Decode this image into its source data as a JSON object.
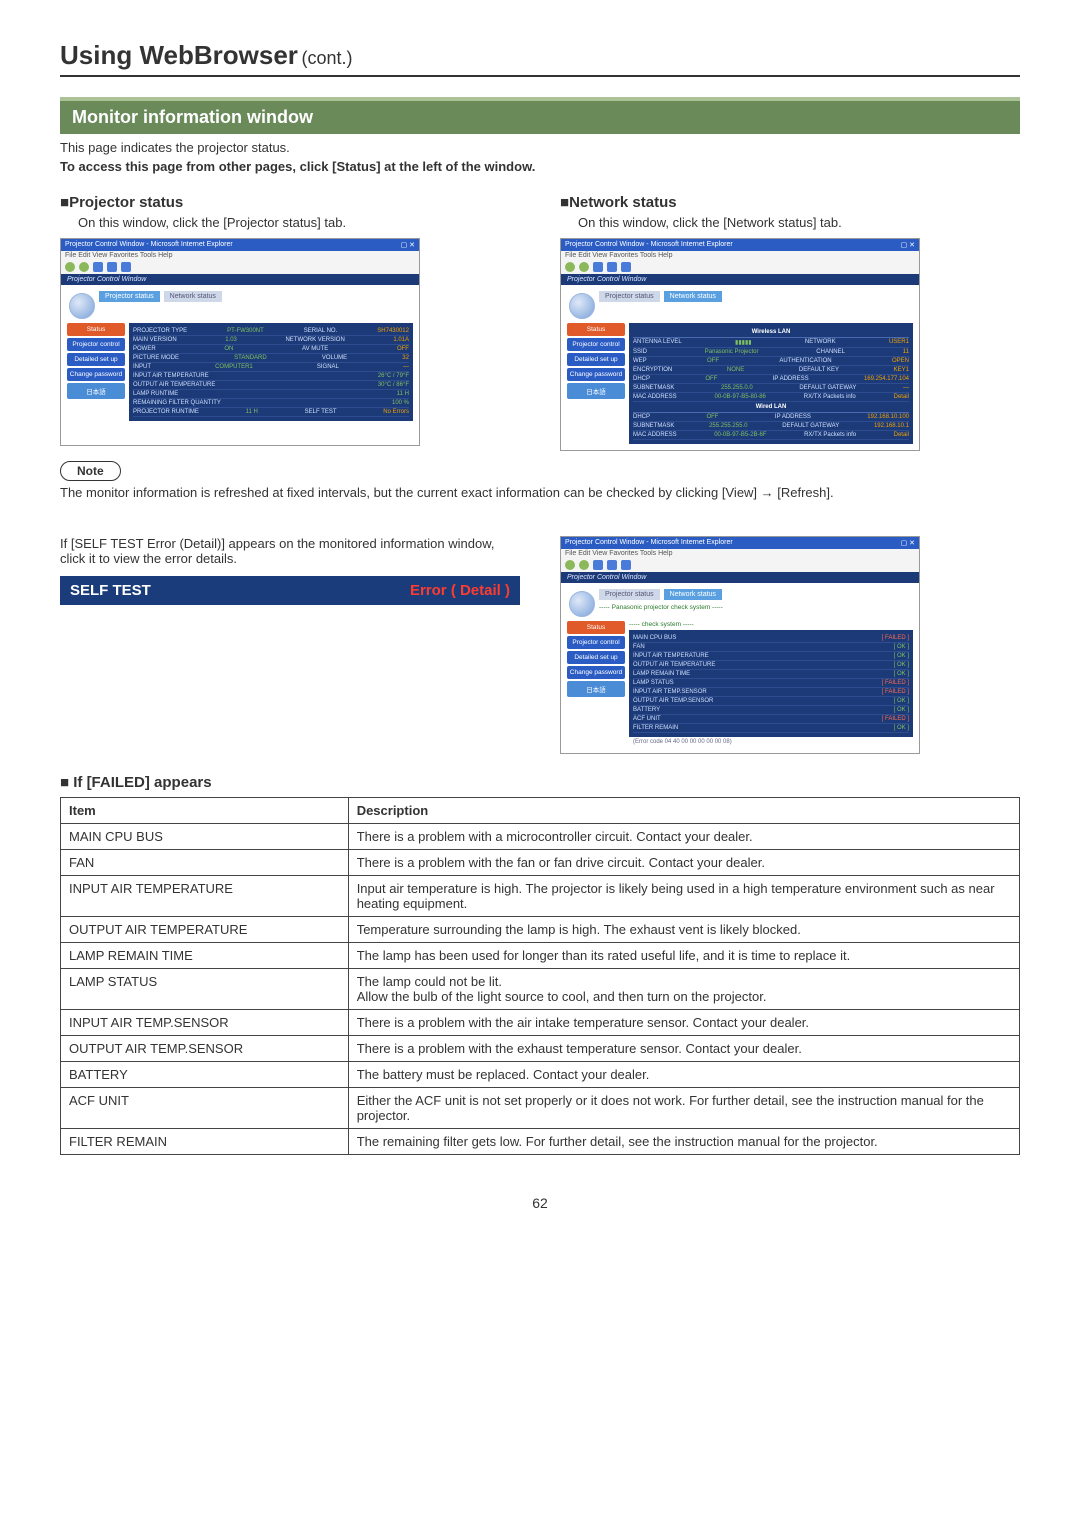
{
  "page": {
    "title_main": "Using WebBrowser",
    "title_sub": "(cont.)",
    "section_title": "Monitor information window",
    "intro1": "This page indicates the projector status.",
    "intro2": "To access this page from other pages, click [Status] at the left of the window.",
    "page_number": "62"
  },
  "projector": {
    "heading": "Projector status",
    "text": "On this window, click the [Projector status] tab."
  },
  "network": {
    "heading": "Network status",
    "text": "On this window, click the [Network status] tab."
  },
  "note": {
    "label": "Note",
    "body": "The monitor information is refreshed at fixed intervals, but the current exact information can be checked by clicking [View] → [Refresh]."
  },
  "mid": {
    "para": "If [SELF TEST Error (Detail)] appears on the monitored information window, click it to view the error details.",
    "self_label": "SELF TEST",
    "self_err": "Error ( Detail )"
  },
  "failed": {
    "heading": "If [FAILED] appears",
    "th_item": "Item",
    "th_desc": "Description",
    "rows": [
      {
        "item": "MAIN CPU BUS",
        "desc": "There is a problem with a microcontroller circuit. Contact your dealer."
      },
      {
        "item": "FAN",
        "desc": "There is a problem with the fan or fan drive circuit. Contact your dealer."
      },
      {
        "item": "INPUT AIR TEMPERATURE",
        "desc": "Input air temperature is high. The projector is likely being used in a high temperature environment such as near heating equipment."
      },
      {
        "item": "OUTPUT AIR TEMPERATURE",
        "desc": "Temperature surrounding the lamp is high. The exhaust vent is likely blocked."
      },
      {
        "item": "LAMP REMAIN TIME",
        "desc": "The lamp has been used for longer than its rated useful life, and it is time to replace it."
      },
      {
        "item": "LAMP STATUS",
        "desc": "The lamp could not be lit.\nAllow the bulb of the light source to cool, and then turn on the projector."
      },
      {
        "item": "INPUT AIR TEMP.SENSOR",
        "desc": "There is a problem with the air intake temperature sensor. Contact your dealer."
      },
      {
        "item": "OUTPUT AIR TEMP.SENSOR",
        "desc": "There is a problem with the exhaust temperature sensor. Contact your dealer."
      },
      {
        "item": "BATTERY",
        "desc": "The battery must be replaced. Contact your dealer."
      },
      {
        "item": "ACF UNIT",
        "desc": "Either the ACF unit is not set properly or it does not work. For further detail, see the instruction manual for the projector."
      },
      {
        "item": "FILTER REMAIN",
        "desc": "The remaining filter gets low. For further detail, see the instruction manual for the projector."
      }
    ]
  },
  "shot_common": {
    "win_title": "Projector Control Window - Microsoft Internet Explorer",
    "menu": "File  Edit  View  Favorites  Tools  Help",
    "darkbar": "Projector Control Window"
  },
  "side_btns": [
    "Status",
    "Projector control",
    "Detailed set up",
    "Change password",
    "日本語"
  ],
  "shot1": {
    "tab_a": "Projector status",
    "tab_b": "Network status",
    "rows": [
      {
        "k": "PROJECTOR TYPE",
        "v": "PT-FW300NT",
        "k2": "SERIAL NO.",
        "v2": "SH7430012"
      },
      {
        "k": "MAIN VERSION",
        "v": "1.03",
        "k2": "NETWORK VERSION",
        "v2": "1.01A"
      },
      {
        "k": "POWER",
        "v": "ON",
        "k2": "AV MUTE",
        "v2": "OFF"
      },
      {
        "k": "PICTURE MODE",
        "v": "STANDARD",
        "k2": "VOLUME",
        "v2": "32"
      },
      {
        "k": "INPUT",
        "v": "COMPUTER1",
        "k2": "SIGNAL",
        "v2": "—"
      },
      {
        "k": "INPUT AIR TEMPERATURE",
        "v": "26°C / 79°F",
        "k2": "",
        "v2": ""
      },
      {
        "k": "OUTPUT AIR TEMPERATURE",
        "v": "30°C / 86°F",
        "k2": "",
        "v2": ""
      },
      {
        "k": "LAMP RUNTIME",
        "v": "11 H",
        "k2": "",
        "v2": ""
      },
      {
        "k": "REMAINING FILTER QUANTITY",
        "v": "100 %",
        "k2": "",
        "v2": ""
      },
      {
        "k": "PROJECTOR RUNTIME",
        "v": "11 H",
        "k2": "SELF TEST",
        "v2": "No Errors"
      }
    ]
  },
  "shot2": {
    "tab_a": "Projector status",
    "tab_b": "Network status",
    "head1": "Wireless LAN",
    "rows1": [
      {
        "k": "ANTENNA LEVEL",
        "v": "▮▮▮▮▮",
        "k2": "NETWORK",
        "v2": "USER1"
      },
      {
        "k": "SSID",
        "v": "Panasonic Projector",
        "k2": "CHANNEL",
        "v2": "11"
      },
      {
        "k": "WEP",
        "v": "OFF",
        "k2": "AUTHENTICATION",
        "v2": "OPEN"
      },
      {
        "k": "ENCRYPTION",
        "v": "NONE",
        "k2": "DEFAULT KEY",
        "v2": "KEY1"
      },
      {
        "k": "DHCP",
        "v": "OFF",
        "k2": "IP ADDRESS",
        "v2": "169.254.177.104"
      },
      {
        "k": "SUBNETMASK",
        "v": "255.255.0.0",
        "k2": "DEFAULT GATEWAY",
        "v2": "—"
      },
      {
        "k": "MAC ADDRESS",
        "v": "00-0B-97-B5-80-86",
        "k2": "RX/TX Packets info",
        "v2": "Detail"
      }
    ],
    "head2": "Wired LAN",
    "rows2": [
      {
        "k": "DHCP",
        "v": "OFF",
        "k2": "IP ADDRESS",
        "v2": "192.168.10.100"
      },
      {
        "k": "SUBNETMASK",
        "v": "255.255.255.0",
        "k2": "DEFAULT GATEWAY",
        "v2": "192.168.10.1"
      },
      {
        "k": "MAC ADDRESS",
        "v": "00-0B-97-B5-2B-6F",
        "k2": "RX/TX Packets info",
        "v2": "Detail"
      }
    ]
  },
  "shot3": {
    "tab_a": "Projector status",
    "tab_b": "Network status",
    "subtitle": "----- Panasonic projector check system -----",
    "check": "----- check system -----",
    "rows": [
      {
        "k": "MAIN CPU BUS",
        "v": "[ FAILED ]",
        "c": "val-rd"
      },
      {
        "k": "FAN",
        "v": "[ OK ]",
        "c": "val"
      },
      {
        "k": "INPUT AIR TEMPERATURE",
        "v": "[ OK ]",
        "c": "val"
      },
      {
        "k": "OUTPUT AIR TEMPERATURE",
        "v": "[ OK ]",
        "c": "val"
      },
      {
        "k": "LAMP REMAIN TIME",
        "v": "[ OK ]",
        "c": "val"
      },
      {
        "k": "LAMP STATUS",
        "v": "[ FAILED ]",
        "c": "val-rd"
      },
      {
        "k": "INPUT AIR TEMP.SENSOR",
        "v": "[ FAILED ]",
        "c": "val-rd"
      },
      {
        "k": "OUTPUT AIR TEMP.SENSOR",
        "v": "[ OK ]",
        "c": "val"
      },
      {
        "k": "BATTERY",
        "v": "[ OK ]",
        "c": "val"
      },
      {
        "k": "ACF UNIT",
        "v": "[ FAILED ]",
        "c": "val-rd"
      },
      {
        "k": "FILTER REMAIN",
        "v": "[ OK ]",
        "c": "val"
      }
    ],
    "footer": "(Error code 04 40 00 00 00 00 00 08)"
  },
  "colors": {
    "section_bg": "#6a8a5a",
    "section_border": "#aac296",
    "darkblue": "#1a3c7a",
    "red": "#ff3b2f"
  }
}
